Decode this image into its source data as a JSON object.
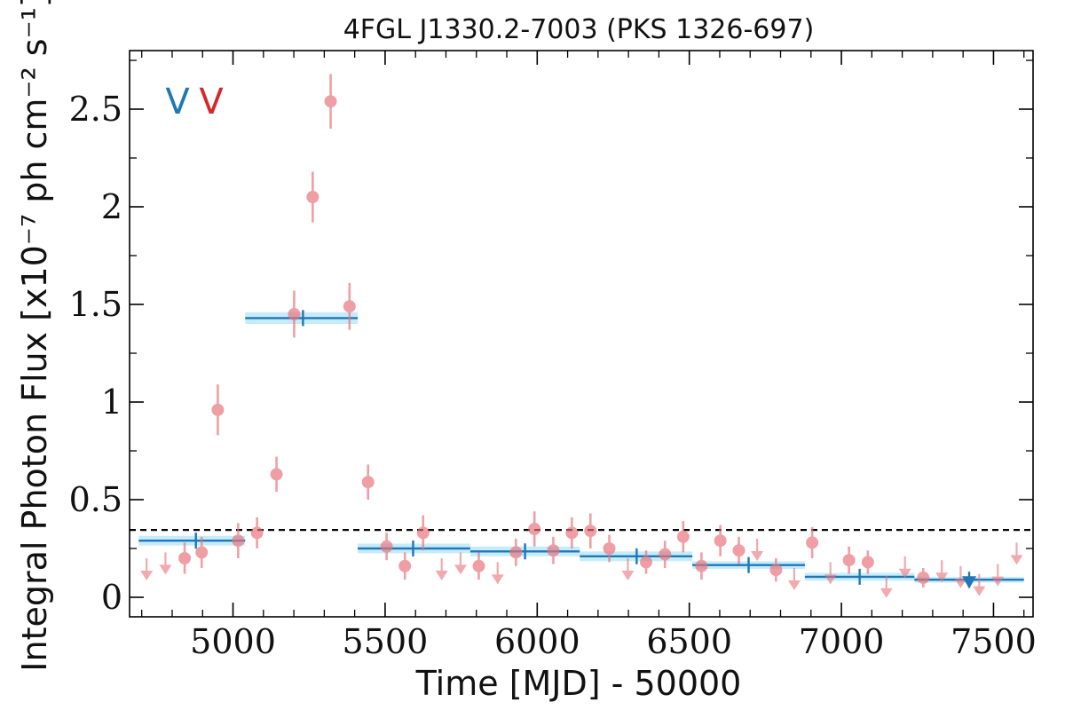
{
  "chart_data": {
    "type": "scatter",
    "title": "4FGL J1330.2-7003 (PKS 1326-697)",
    "xlabel": "Time [MJD] - 50000",
    "ylabel": "Integral Photon Flux [x10⁻⁷ ph cm⁻² s⁻¹]",
    "xlim": [
      4660,
      7630
    ],
    "ylim": [
      -0.1,
      2.8
    ],
    "x_ticks": [
      5000,
      5500,
      6000,
      6500,
      7000,
      7500
    ],
    "x_tick_labels": [
      "5000",
      "5500",
      "6000",
      "6500",
      "7000",
      "7500"
    ],
    "y_ticks": [
      0,
      0.5,
      1,
      1.5,
      2,
      2.5
    ],
    "y_tick_labels": [
      "0",
      "0.5",
      "1",
      "1.5",
      "2",
      "2.5"
    ],
    "threshold": 0.345,
    "legend_marks": [
      {
        "glyph": "V",
        "color": "#1f77b4"
      },
      {
        "glyph": "V",
        "color": "#d62728"
      }
    ],
    "colors": {
      "fine": "#e8737a",
      "coarse": "#1f77b4",
      "band": "#c6ecfb",
      "threshold": "#000000"
    },
    "fine_bin_points": [
      {
        "x": 5143,
        "y": 0.63,
        "err": 0.09
      },
      {
        "x": 4950,
        "y": 0.96,
        "err": 0.13
      },
      {
        "x": 5017,
        "y": 0.29,
        "err": 0.09
      },
      {
        "x": 5079,
        "y": 0.33,
        "err": 0.08
      },
      {
        "x": 5201,
        "y": 1.45,
        "err": 0.12
      },
      {
        "x": 5262,
        "y": 2.05,
        "err": 0.13
      },
      {
        "x": 5321,
        "y": 2.54,
        "err": 0.14
      },
      {
        "x": 5383,
        "y": 1.49,
        "err": 0.12
      },
      {
        "x": 5444,
        "y": 0.59,
        "err": 0.09
      },
      {
        "x": 5505,
        "y": 0.26,
        "err": 0.07
      },
      {
        "x": 5565,
        "y": 0.16,
        "err": 0.07
      },
      {
        "x": 5625,
        "y": 0.33,
        "err": 0.09
      },
      {
        "x": 5808,
        "y": 0.16,
        "err": 0.07
      },
      {
        "x": 5930,
        "y": 0.23,
        "err": 0.07
      },
      {
        "x": 5991,
        "y": 0.35,
        "err": 0.09
      },
      {
        "x": 6053,
        "y": 0.24,
        "err": 0.07
      },
      {
        "x": 6114,
        "y": 0.33,
        "err": 0.08
      },
      {
        "x": 6175,
        "y": 0.34,
        "err": 0.09
      },
      {
        "x": 6237,
        "y": 0.25,
        "err": 0.07
      },
      {
        "x": 6358,
        "y": 0.18,
        "err": 0.06
      },
      {
        "x": 6420,
        "y": 0.22,
        "err": 0.07
      },
      {
        "x": 6480,
        "y": 0.31,
        "err": 0.08
      },
      {
        "x": 6540,
        "y": 0.16,
        "err": 0.07
      },
      {
        "x": 6602,
        "y": 0.29,
        "err": 0.08
      },
      {
        "x": 6663,
        "y": 0.24,
        "err": 0.07
      },
      {
        "x": 6785,
        "y": 0.14,
        "err": 0.06
      },
      {
        "x": 6904,
        "y": 0.28,
        "err": 0.08
      },
      {
        "x": 7025,
        "y": 0.19,
        "err": 0.07
      },
      {
        "x": 7087,
        "y": 0.18,
        "err": 0.06
      },
      {
        "x": 7269,
        "y": 0.1,
        "err": 0.05
      },
      {
        "x": 4841,
        "y": 0.2,
        "err": 0.08
      },
      {
        "x": 4897,
        "y": 0.23,
        "err": 0.08
      }
    ],
    "fine_bin_upper_limits": [
      {
        "x": 4716,
        "y": 0.2
      },
      {
        "x": 4778,
        "y": 0.23
      },
      {
        "x": 5686,
        "y": 0.2
      },
      {
        "x": 5748,
        "y": 0.23
      },
      {
        "x": 5870,
        "y": 0.18
      },
      {
        "x": 6298,
        "y": 0.2
      },
      {
        "x": 6723,
        "y": 0.3
      },
      {
        "x": 6845,
        "y": 0.15
      },
      {
        "x": 6964,
        "y": 0.18
      },
      {
        "x": 7148,
        "y": 0.11
      },
      {
        "x": 7209,
        "y": 0.21
      },
      {
        "x": 7330,
        "y": 0.19
      },
      {
        "x": 7392,
        "y": 0.16
      },
      {
        "x": 7453,
        "y": 0.12
      },
      {
        "x": 7514,
        "y": 0.17
      },
      {
        "x": 7576,
        "y": 0.28
      }
    ],
    "coarse_bins": [
      {
        "x_start": 4690,
        "x_end": 5040,
        "x_center": 4878,
        "y": 0.29,
        "err": 0.025
      },
      {
        "x_start": 5040,
        "x_end": 5410,
        "x_center": 5230,
        "y": 1.43,
        "err": 0.03
      },
      {
        "x_start": 5410,
        "x_end": 5780,
        "x_center": 5592,
        "y": 0.25,
        "err": 0.025
      },
      {
        "x_start": 5780,
        "x_end": 6140,
        "x_center": 5960,
        "y": 0.235,
        "err": 0.025
      },
      {
        "x_start": 6140,
        "x_end": 6510,
        "x_center": 6327,
        "y": 0.21,
        "err": 0.025
      },
      {
        "x_start": 6510,
        "x_end": 6880,
        "x_center": 6695,
        "y": 0.165,
        "err": 0.02
      },
      {
        "x_start": 6880,
        "x_end": 7240,
        "x_center": 7060,
        "y": 0.105,
        "err": 0.02
      },
      {
        "x_start": 7240,
        "x_end": 7600,
        "x_center": 7420,
        "y": 0.09,
        "err": 0.015
      }
    ],
    "coarse_upper_limits": [
      {
        "x": 7420,
        "y": 0.09
      }
    ]
  }
}
